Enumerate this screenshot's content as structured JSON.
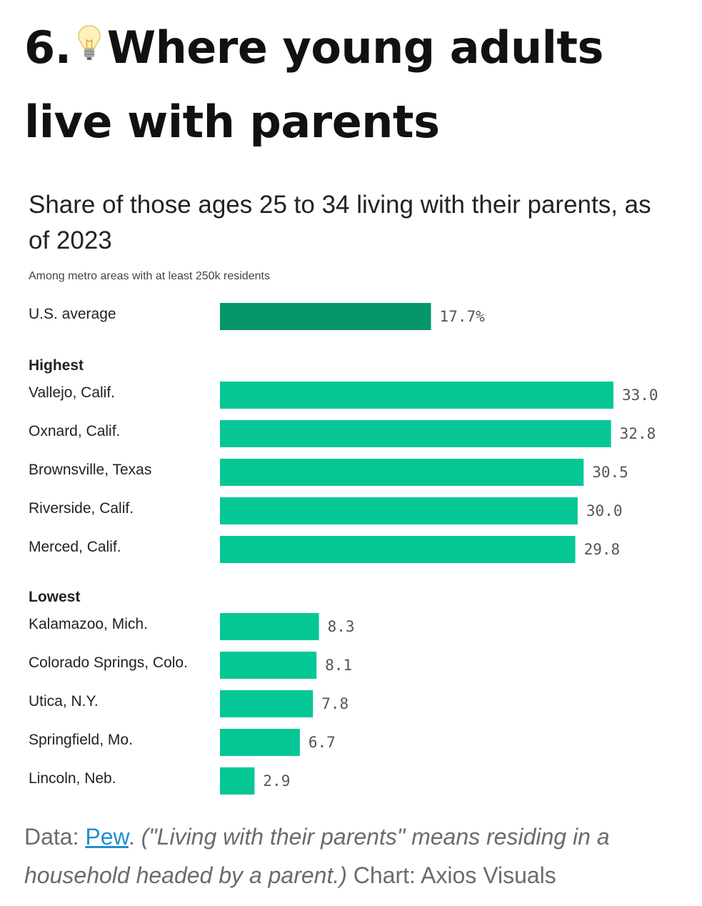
{
  "heading": {
    "number": "6.",
    "icon": "lightbulb-icon",
    "text_line1": "Where young adults",
    "text_line2": "live with parents"
  },
  "chart_data": {
    "type": "bar",
    "orientation": "horizontal",
    "title": "Share of those ages 25 to 34 living with their parents, as of 2023",
    "subtitle": "Among metro areas with at least 250k residents",
    "xlim": [
      0,
      33
    ],
    "grid": false,
    "colors": {
      "average": "#07966a",
      "metro": "#05c796"
    },
    "average": {
      "label": "U.S. average",
      "value": 17.7,
      "value_label": "17.7%"
    },
    "groups": [
      {
        "name": "Highest",
        "categories": [
          "Vallejo, Calif.",
          "Oxnard, Calif.",
          "Brownsville, Texas",
          "Riverside, Calif.",
          "Merced, Calif."
        ],
        "values": [
          33.0,
          32.8,
          30.5,
          30.0,
          29.8
        ],
        "value_labels": [
          "33.0",
          "32.8",
          "30.5",
          "30.0",
          "29.8"
        ]
      },
      {
        "name": "Lowest",
        "categories": [
          "Kalamazoo, Mich.",
          "Colorado Springs, Colo.",
          "Utica, N.Y.",
          "Springfield, Mo.",
          "Lincoln, Neb."
        ],
        "values": [
          8.3,
          8.1,
          7.8,
          6.7,
          2.9
        ],
        "value_labels": [
          "8.3",
          "8.1",
          "7.8",
          "6.7",
          "2.9"
        ]
      }
    ]
  },
  "footer": {
    "data_prefix": "Data: ",
    "source_link": "Pew",
    "after_link": ". ",
    "note": "(\"Living with their parents\" means residing in a household headed by a parent.)",
    "credit": " Chart: Axios Visuals"
  }
}
